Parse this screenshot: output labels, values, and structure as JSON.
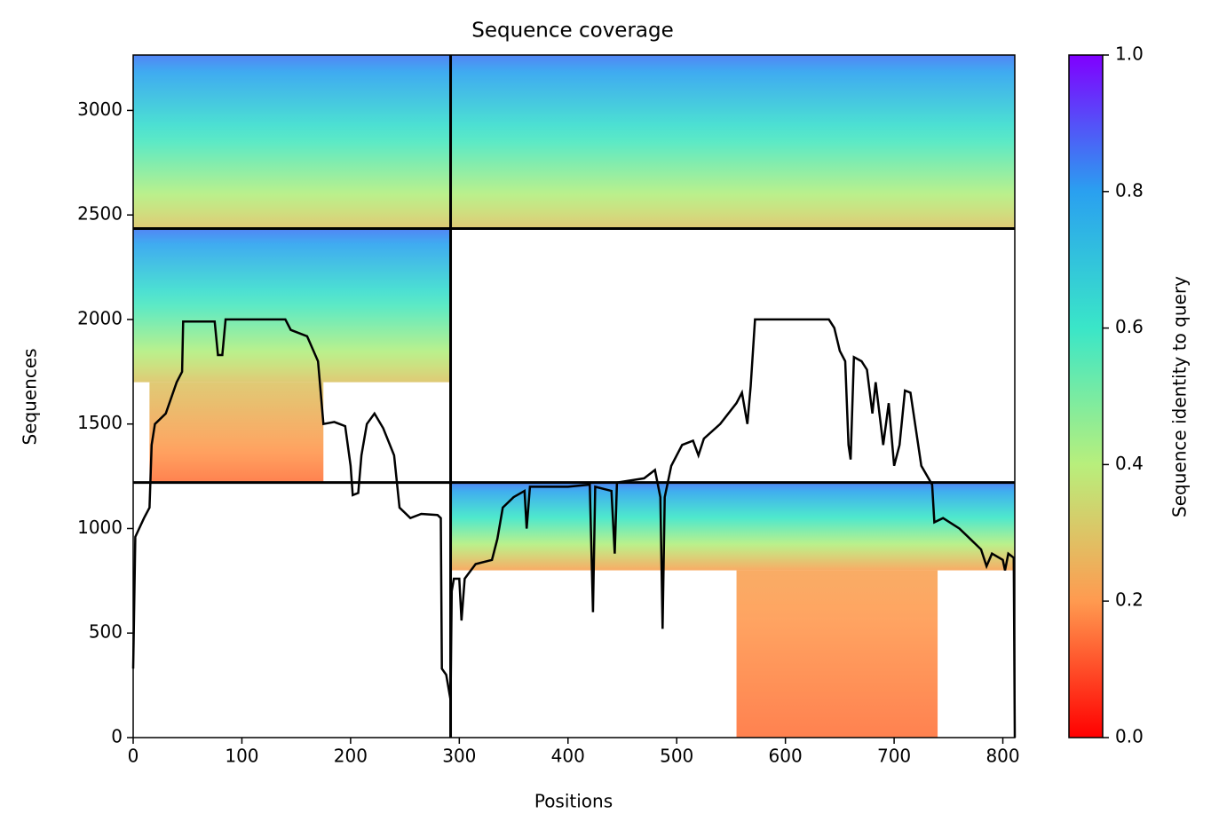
{
  "chart_data": {
    "type": "coverage",
    "title": "Sequence coverage",
    "xlabel": "Positions",
    "ylabel": "Sequences",
    "colorbar_label": "Sequence identity to query",
    "xlim": [
      0,
      811
    ],
    "xticks": [
      0,
      100,
      200,
      300,
      400,
      500,
      600,
      700,
      800
    ],
    "ylim": [
      0,
      3265
    ],
    "yticks": [
      0,
      500,
      1000,
      1500,
      2000,
      2500,
      3000
    ],
    "clim": [
      0,
      1
    ],
    "cticks": [
      0.0,
      0.2,
      0.4,
      0.6,
      0.8,
      1.0
    ],
    "colormap": [
      [
        0,
        "#ff0000"
      ],
      [
        0.2,
        "#ff9a50"
      ],
      [
        0.4,
        "#b8ef7c"
      ],
      [
        0.6,
        "#3ae6c8"
      ],
      [
        0.8,
        "#2aa0f0"
      ],
      [
        1,
        "#8000ff"
      ]
    ],
    "blocks": [
      {
        "x": [
          0,
          292
        ],
        "y": [
          2435,
          3265
        ],
        "identity": [
          0.85,
          0.3
        ]
      },
      {
        "x": [
          292,
          811
        ],
        "y": [
          2435,
          3265
        ],
        "identity": [
          0.85,
          0.3
        ]
      },
      {
        "x": [
          0,
          292
        ],
        "y": [
          1700,
          2435
        ],
        "identity": [
          0.85,
          0.3
        ]
      },
      {
        "x": [
          15,
          175
        ],
        "y": [
          1220,
          1700
        ],
        "identity": [
          0.3,
          0.15
        ]
      },
      {
        "x": [
          292,
          811
        ],
        "y": [
          800,
          1220
        ],
        "identity": [
          0.85,
          0.22
        ]
      },
      {
        "x": [
          555,
          740
        ],
        "y": [
          0,
          800
        ],
        "identity": [
          0.22,
          0.15
        ]
      }
    ],
    "separators_x": [
      292
    ],
    "separators_y": [
      1220,
      2435
    ],
    "series": [
      {
        "name": "coverage",
        "color": "#000000",
        "x": [
          0,
          2,
          10,
          15,
          17,
          20,
          30,
          40,
          45,
          46,
          75,
          78,
          82,
          85,
          140,
          145,
          160,
          170,
          175,
          185,
          195,
          200,
          202,
          207,
          210,
          215,
          222,
          230,
          240,
          245,
          255,
          265,
          280,
          283,
          284,
          288,
          292,
          293,
          295,
          300,
          302,
          305,
          315,
          330,
          335,
          340,
          350,
          360,
          362,
          365,
          400,
          420,
          423,
          425,
          440,
          443,
          445,
          470,
          480,
          485,
          487,
          489,
          495,
          505,
          515,
          520,
          525,
          540,
          555,
          560,
          565,
          568,
          572,
          600,
          640,
          645,
          650,
          655,
          658,
          660,
          663,
          670,
          675,
          680,
          683,
          690,
          695,
          700,
          705,
          710,
          715,
          725,
          735,
          737,
          745,
          760,
          770,
          780,
          785,
          790,
          800,
          802,
          805,
          810,
          811
        ],
        "values": [
          330,
          960,
          1050,
          1100,
          1400,
          1500,
          1550,
          1700,
          1750,
          1990,
          1990,
          1830,
          1830,
          2000,
          2000,
          1950,
          1920,
          1800,
          1500,
          1510,
          1490,
          1300,
          1160,
          1170,
          1350,
          1500,
          1550,
          1480,
          1350,
          1100,
          1050,
          1070,
          1065,
          1050,
          330,
          300,
          180,
          700,
          760,
          760,
          560,
          760,
          830,
          850,
          950,
          1100,
          1150,
          1180,
          1000,
          1200,
          1200,
          1210,
          600,
          1200,
          1180,
          880,
          1220,
          1240,
          1280,
          1150,
          520,
          1150,
          1300,
          1400,
          1420,
          1350,
          1430,
          1500,
          1600,
          1650,
          1500,
          1680,
          2000,
          2000,
          2000,
          1960,
          1850,
          1800,
          1400,
          1330,
          1820,
          1800,
          1760,
          1550,
          1700,
          1400,
          1600,
          1300,
          1400,
          1660,
          1650,
          1300,
          1210,
          1030,
          1050,
          1000,
          950,
          900,
          820,
          880,
          850,
          800,
          880,
          860,
          0
        ]
      }
    ]
  }
}
